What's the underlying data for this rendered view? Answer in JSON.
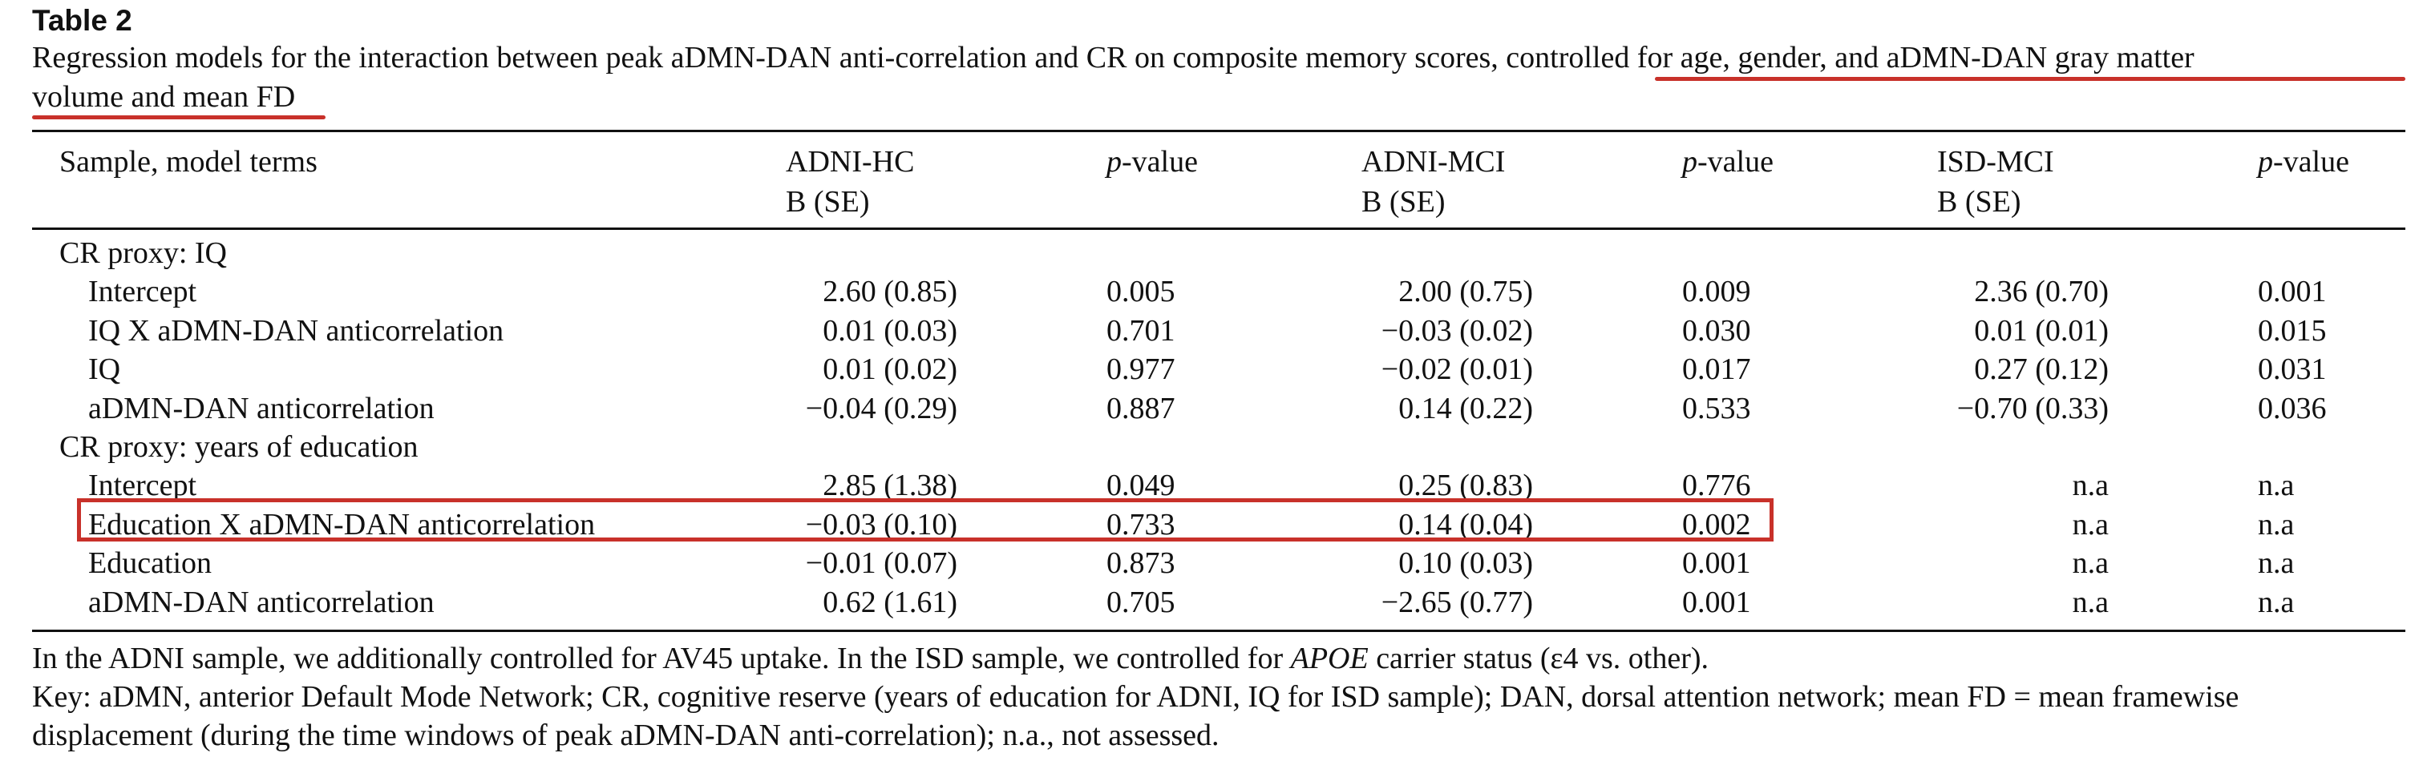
{
  "table_label": "Table 2",
  "caption": {
    "line1_plain": "Regression models for the interaction between peak aDMN-DAN anti-correlation and CR on composite memory scores, ",
    "line1_underlined": "controlled for age, gender, and aDMN-DAN gray matter",
    "line2_underlined": "volume and mean FD"
  },
  "header": {
    "col1": "Sample, model terms",
    "adni_hc": "ADNI-HC",
    "adni_mci": "ADNI-MCI",
    "isd_mci": "ISD-MCI",
    "b_se": "B (SE)",
    "p_italic": "p",
    "p_rest": "-value"
  },
  "sections": [
    {
      "title": "CR proxy: IQ",
      "rows": [
        {
          "term": "Intercept",
          "hc_b": "2.60 (0.85)",
          "hc_p": "0.005",
          "mci_b": "2.00 (0.75)",
          "mci_p": "0.009",
          "isd_b": "2.36 (0.70)",
          "isd_p": "0.001"
        },
        {
          "term": "IQ X aDMN-DAN anticorrelation",
          "hc_b": "0.01 (0.03)",
          "hc_p": "0.701",
          "mci_b": "−0.03 (0.02)",
          "mci_p": "0.030",
          "isd_b": "0.01 (0.01)",
          "isd_p": "0.015"
        },
        {
          "term": "IQ",
          "hc_b": "0.01 (0.02)",
          "hc_p": "0.977",
          "mci_b": "−0.02 (0.01)",
          "mci_p": "0.017",
          "isd_b": "0.27 (0.12)",
          "isd_p": "0.031"
        },
        {
          "term": "aDMN-DAN anticorrelation",
          "hc_b": "−0.04 (0.29)",
          "hc_p": "0.887",
          "mci_b": "0.14 (0.22)",
          "mci_p": "0.533",
          "isd_b": "−0.70 (0.33)",
          "isd_p": "0.036"
        }
      ]
    },
    {
      "title": "CR proxy: years of education",
      "rows": [
        {
          "term": "Intercept",
          "hc_b": "2.85 (1.38)",
          "hc_p": "0.049",
          "mci_b": "0.25 (0.83)",
          "mci_p": "0.776",
          "isd_b": "n.a",
          "isd_p": "n.a"
        },
        {
          "term": "Education X aDMN-DAN anticorrelation",
          "hc_b": "−0.03 (0.10)",
          "hc_p": "0.733",
          "mci_b": "0.14 (0.04)",
          "mci_p": "0.002",
          "isd_b": "n.a",
          "isd_p": "n.a"
        },
        {
          "term": "Education",
          "hc_b": "−0.01 (0.07)",
          "hc_p": "0.873",
          "mci_b": "0.10 (0.03)",
          "mci_p": "0.001",
          "isd_b": "n.a",
          "isd_p": "n.a"
        },
        {
          "term": "aDMN-DAN anticorrelation",
          "hc_b": "0.62 (1.61)",
          "hc_p": "0.705",
          "mci_b": "−2.65 (0.77)",
          "mci_p": "0.001",
          "isd_b": "n.a",
          "isd_p": "n.a"
        }
      ]
    }
  ],
  "footnotes": {
    "line1_a": "In the ADNI sample, we additionally controlled for AV45 uptake. In the ISD sample, we controlled for ",
    "line1_italic": "APOE",
    "line1_b": " carrier status (ε4 vs. other).",
    "line2": "Key: aDMN, anterior Default Mode Network; CR, cognitive reserve (years of education for ADNI, IQ for ISD sample); DAN, dorsal attention network; mean FD = mean framewise",
    "line3": "displacement (during the time windows of peak aDMN-DAN anti-correlation); n.a., not assessed."
  },
  "colors": {
    "annotation_red": "#c8312a",
    "text": "#111111"
  }
}
